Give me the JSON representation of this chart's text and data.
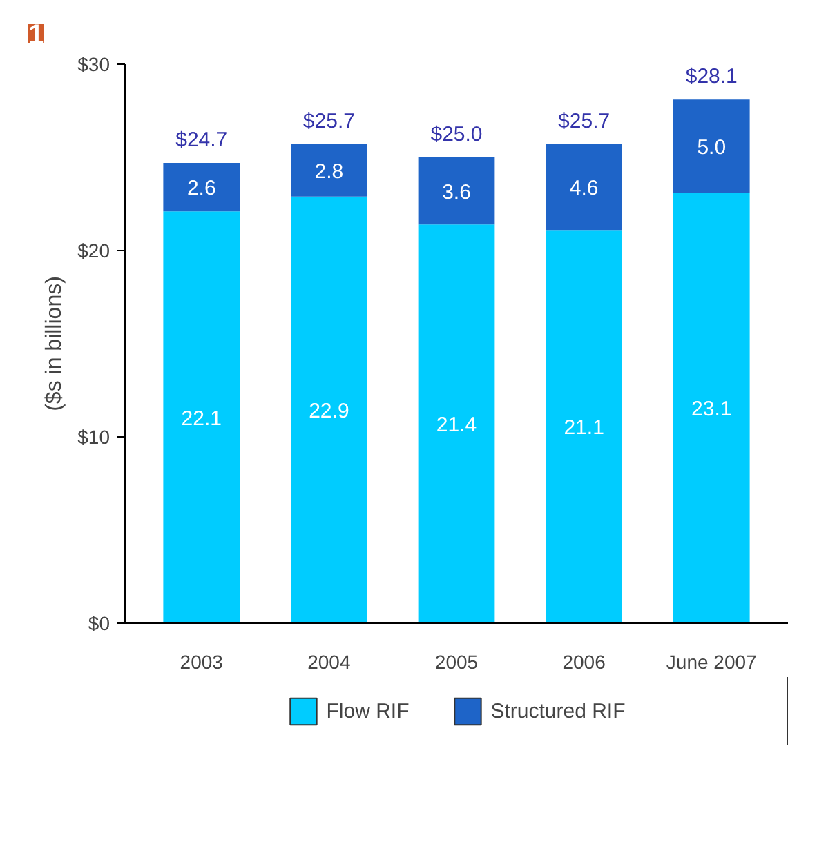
{
  "chart_data": {
    "type": "bar",
    "ylabel": "($s in billions)",
    "categories": [
      "2003",
      "2004",
      "2005",
      "2006",
      "June 2007"
    ],
    "series": [
      {
        "name": "Flow RIF",
        "color": "#00ccff",
        "values": [
          22.1,
          22.9,
          21.4,
          21.1,
          23.1
        ],
        "value_labels": [
          "22.1",
          "22.9",
          "21.4",
          "21.1",
          "23.1"
        ]
      },
      {
        "name": "Structured RIF",
        "color": "#1e64c8",
        "values": [
          2.6,
          2.8,
          3.6,
          4.6,
          5.0
        ],
        "value_labels": [
          "2.6",
          "2.8",
          "3.6",
          "4.6",
          "5.0"
        ]
      }
    ],
    "stacked": true,
    "totals": [
      "$24.7",
      "$25.7",
      "$25.0",
      "$25.7",
      "$28.1"
    ],
    "ylim": [
      0,
      30
    ],
    "yticks": [
      {
        "value": 0,
        "label": "$0"
      },
      {
        "value": 10,
        "label": "$10"
      },
      {
        "value": 20,
        "label": "$20"
      },
      {
        "value": 30,
        "label": "$30"
      }
    ],
    "legend": "bottom",
    "annotations": [
      "1"
    ]
  }
}
